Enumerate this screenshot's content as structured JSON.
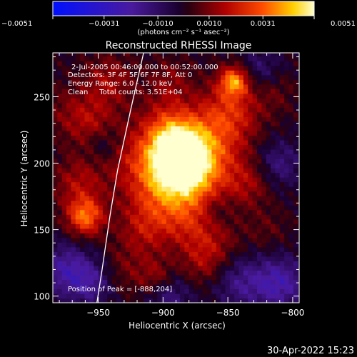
{
  "chart_data": {
    "type": "heatmap",
    "title": "Reconstructed RHESSI Image",
    "xlabel": "Heliocentric X (arcsec)",
    "ylabel": "Heliocentric Y (arcsec)",
    "xlim": [
      -985,
      -795
    ],
    "ylim": [
      95,
      283
    ],
    "x_ticks": [
      -950,
      -900,
      -850,
      -800
    ],
    "y_ticks": [
      100,
      150,
      200,
      250
    ],
    "x_tick_labels": [
      "−950",
      "−900",
      "−850",
      "−800"
    ],
    "y_tick_labels": [
      "100",
      "150",
      "200",
      "250"
    ],
    "colorbar": {
      "range": [
        -0.0051,
        0.0051
      ],
      "ticks": [
        -0.0051,
        -0.0031,
        -0.001,
        0.001,
        0.0031,
        0.0051
      ],
      "tick_labels": [
        "−0.0051",
        "−0.0031",
        "−0.0010",
        "0.0010",
        "0.0031",
        "0.0051"
      ],
      "units": "(photons cm⁻² s⁻¹ asec⁻²)"
    },
    "annotations": {
      "time_range": "2-Jul-2005 00:46:00.000 to 00:52:00.000",
      "detectors": "Detectors: 3F 4F 5F 6F 7F 8F, Att 0",
      "energy": "Energy Range: 6.0 - 12.0 keV",
      "method_counts": "Clean     Total counts: 3.51E+04",
      "peak": "Position of Peak = [-888,204]"
    },
    "peak_position": [
      -888,
      204
    ],
    "limb_points": [
      [
        -915,
        283
      ],
      [
        -925,
        240
      ],
      [
        -935,
        195
      ],
      [
        -941,
        160
      ],
      [
        -947,
        120
      ],
      [
        -951,
        95
      ]
    ],
    "blobs": [
      {
        "x": -888,
        "y": 204,
        "r": 14,
        "v": 0.0051
      },
      {
        "x": -878,
        "y": 190,
        "r": 22,
        "v": 0.0028
      },
      {
        "x": -896,
        "y": 225,
        "r": 16,
        "v": 0.0022
      },
      {
        "x": -905,
        "y": 180,
        "r": 18,
        "v": 0.0018
      },
      {
        "x": -865,
        "y": 215,
        "r": 20,
        "v": 0.0016
      },
      {
        "x": -848,
        "y": 240,
        "r": 16,
        "v": 0.0019
      },
      {
        "x": -845,
        "y": 262,
        "r": 8,
        "v": 0.0034
      },
      {
        "x": -960,
        "y": 160,
        "r": 10,
        "v": 0.0032
      },
      {
        "x": -965,
        "y": 185,
        "r": 14,
        "v": 0.0015
      },
      {
        "x": -955,
        "y": 230,
        "r": 14,
        "v": 0.0014
      },
      {
        "x": -942,
        "y": 262,
        "r": 14,
        "v": 0.0014
      },
      {
        "x": -925,
        "y": 205,
        "r": 16,
        "v": 0.0012
      },
      {
        "x": -915,
        "y": 150,
        "r": 14,
        "v": 0.0013
      },
      {
        "x": -880,
        "y": 155,
        "r": 16,
        "v": 0.0012
      },
      {
        "x": -860,
        "y": 140,
        "r": 14,
        "v": 0.0009
      },
      {
        "x": -833,
        "y": 185,
        "r": 12,
        "v": 0.0011
      },
      {
        "x": -870,
        "y": 125,
        "r": 12,
        "v": 0.001
      },
      {
        "x": -930,
        "y": 120,
        "r": 14,
        "v": 0.0008
      },
      {
        "x": -905,
        "y": 115,
        "r": 10,
        "v": 0.0012
      },
      {
        "x": -895,
        "y": 262,
        "r": 12,
        "v": 0.001
      },
      {
        "x": -815,
        "y": 255,
        "r": 12,
        "v": 0.0008
      },
      {
        "x": -820,
        "y": 150,
        "r": 12,
        "v": 0.0006
      },
      {
        "x": -975,
        "y": 240,
        "r": 14,
        "v": 0.0007
      },
      {
        "x": -810,
        "y": 110,
        "r": 14,
        "v": -0.0022
      },
      {
        "x": -840,
        "y": 110,
        "r": 14,
        "v": -0.0015
      },
      {
        "x": -975,
        "y": 120,
        "r": 14,
        "v": -0.002
      },
      {
        "x": -955,
        "y": 110,
        "r": 12,
        "v": -0.0016
      },
      {
        "x": -895,
        "y": 100,
        "r": 12,
        "v": -0.0014
      },
      {
        "x": -810,
        "y": 200,
        "r": 12,
        "v": -0.0014
      },
      {
        "x": -825,
        "y": 270,
        "r": 12,
        "v": -0.0012
      },
      {
        "x": -945,
        "y": 215,
        "r": 10,
        "v": -0.0011
      },
      {
        "x": -860,
        "y": 165,
        "r": 10,
        "v": -0.001
      }
    ]
  },
  "footer": {
    "timestamp": "30-Apr-2022 15:23"
  },
  "colors": {
    "background": "#000000",
    "text": "#ffffff",
    "limb": "#ffffff"
  }
}
